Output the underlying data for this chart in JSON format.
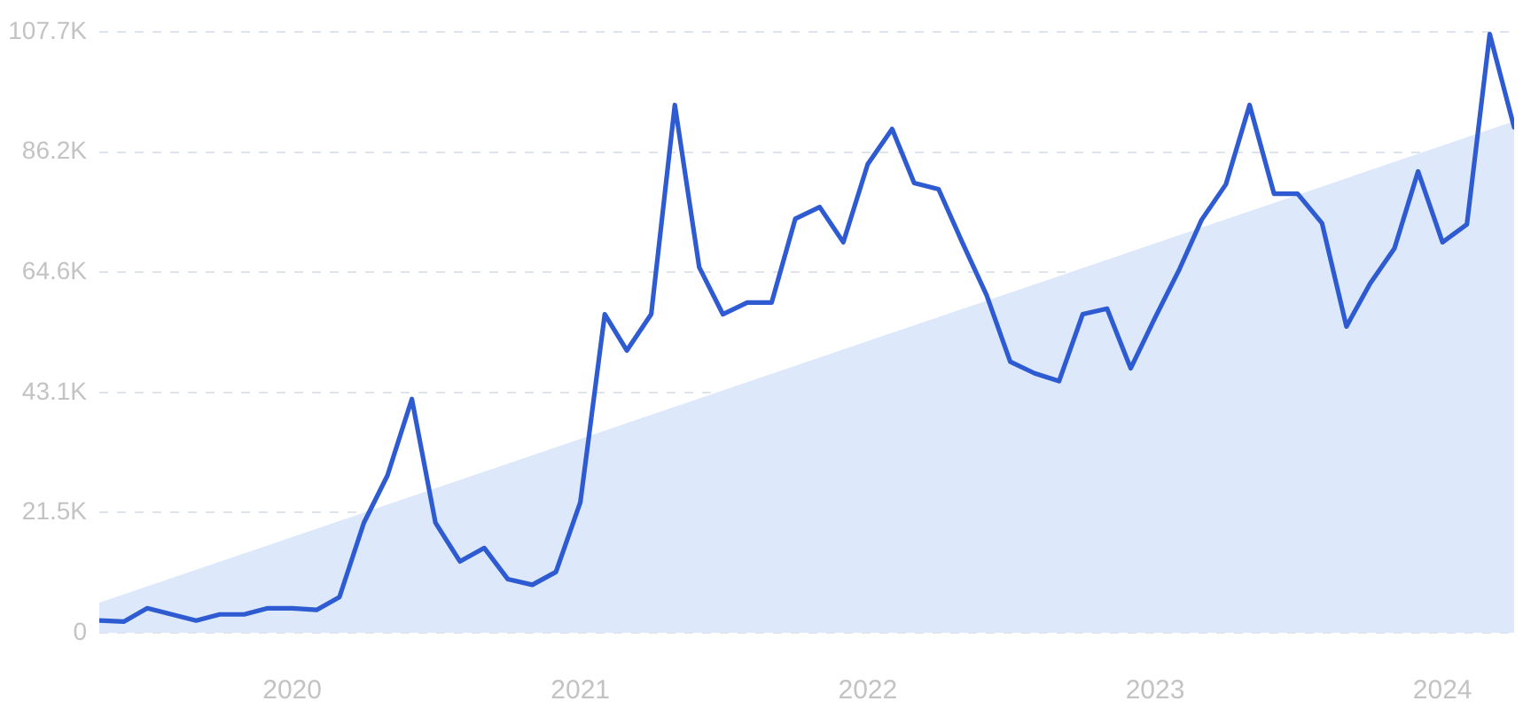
{
  "chart_data": {
    "type": "line",
    "x": [
      "2019-05",
      "2019-06",
      "2019-07",
      "2019-08",
      "2019-09",
      "2019-10",
      "2019-11",
      "2019-12",
      "2020-01",
      "2020-02",
      "2020-03",
      "2020-04",
      "2020-05",
      "2020-06",
      "2020-07",
      "2020-08",
      "2020-09",
      "2020-10",
      "2020-11",
      "2020-12",
      "2021-01",
      "2021-02",
      "2021-03",
      "2021-04",
      "2021-05",
      "2021-06",
      "2021-07",
      "2021-08",
      "2021-09",
      "2021-10",
      "2021-11",
      "2021-12",
      "2022-01",
      "2022-02",
      "2022-03",
      "2022-04",
      "2022-05",
      "2022-06",
      "2022-07",
      "2022-08",
      "2022-09",
      "2022-10",
      "2022-11",
      "2022-12",
      "2023-01",
      "2023-02",
      "2023-03",
      "2023-04",
      "2023-05",
      "2023-06",
      "2023-07",
      "2023-08",
      "2023-09",
      "2023-10",
      "2023-11",
      "2023-12",
      "2024-01",
      "2024-02",
      "2024-03",
      "2024-04"
    ],
    "series": [
      {
        "color": "#2e5bd1",
        "values": [
          2200,
          2000,
          4400,
          3300,
          2200,
          3300,
          3300,
          4400,
          4400,
          4100,
          6400,
          19700,
          28200,
          41900,
          19700,
          12800,
          15200,
          9600,
          8600,
          10900,
          23400,
          57100,
          50600,
          57100,
          94600,
          65500,
          57100,
          59200,
          59200,
          74200,
          76300,
          70000,
          84000,
          90300,
          80600,
          79500,
          70000,
          60500,
          48600,
          46500,
          45100,
          57100,
          58100,
          47400,
          56500,
          65200,
          74000,
          80400,
          94600,
          78700,
          78700,
          73400,
          54900,
          62600,
          68900,
          82700,
          70000,
          73200,
          107300,
          90600
        ]
      },
      {
        "type": "area",
        "color": "#dde9fb",
        "x": [
          "2019-05",
          "2024-04"
        ],
        "values": [
          5400,
          91700
        ]
      }
    ],
    "xlim": [
      "2019-05",
      "2024-04"
    ],
    "xticks": [
      "2020",
      "2021",
      "2022",
      "2023",
      "2024"
    ],
    "ylim": [
      0,
      107700
    ],
    "yticks": [
      0,
      {
        "value": 21540,
        "label": "21.5K"
      },
      {
        "value": 43080,
        "label": "43.1K"
      },
      {
        "value": 64620,
        "label": "64.6K"
      },
      {
        "value": 86160,
        "label": "86.2K"
      },
      {
        "value": 107700,
        "label": "107.7K"
      }
    ],
    "grid": "y",
    "legend": false,
    "marker": "none",
    "line_style": "solid"
  }
}
